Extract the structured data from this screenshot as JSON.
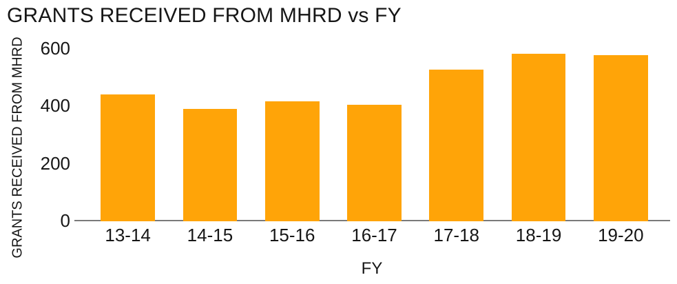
{
  "chart_data": {
    "type": "bar",
    "title": "GRANTS RECEIVED FROM MHRD vs FY",
    "xlabel": "FY",
    "ylabel": "GRANTS RECEIVED FROM MHRD",
    "categories": [
      "13-14",
      "14-15",
      "15-16",
      "16-17",
      "17-18",
      "18-19",
      "19-20"
    ],
    "values": [
      440,
      390,
      415,
      405,
      525,
      580,
      575
    ],
    "ylim": [
      0,
      600
    ],
    "yticks": [
      0,
      200,
      400,
      600
    ],
    "bar_color": "#FFA408",
    "axis_line_color": "#7a7a7a",
    "text_color": "#161616",
    "background": "#ffffff",
    "grid": false,
    "legend": false
  }
}
